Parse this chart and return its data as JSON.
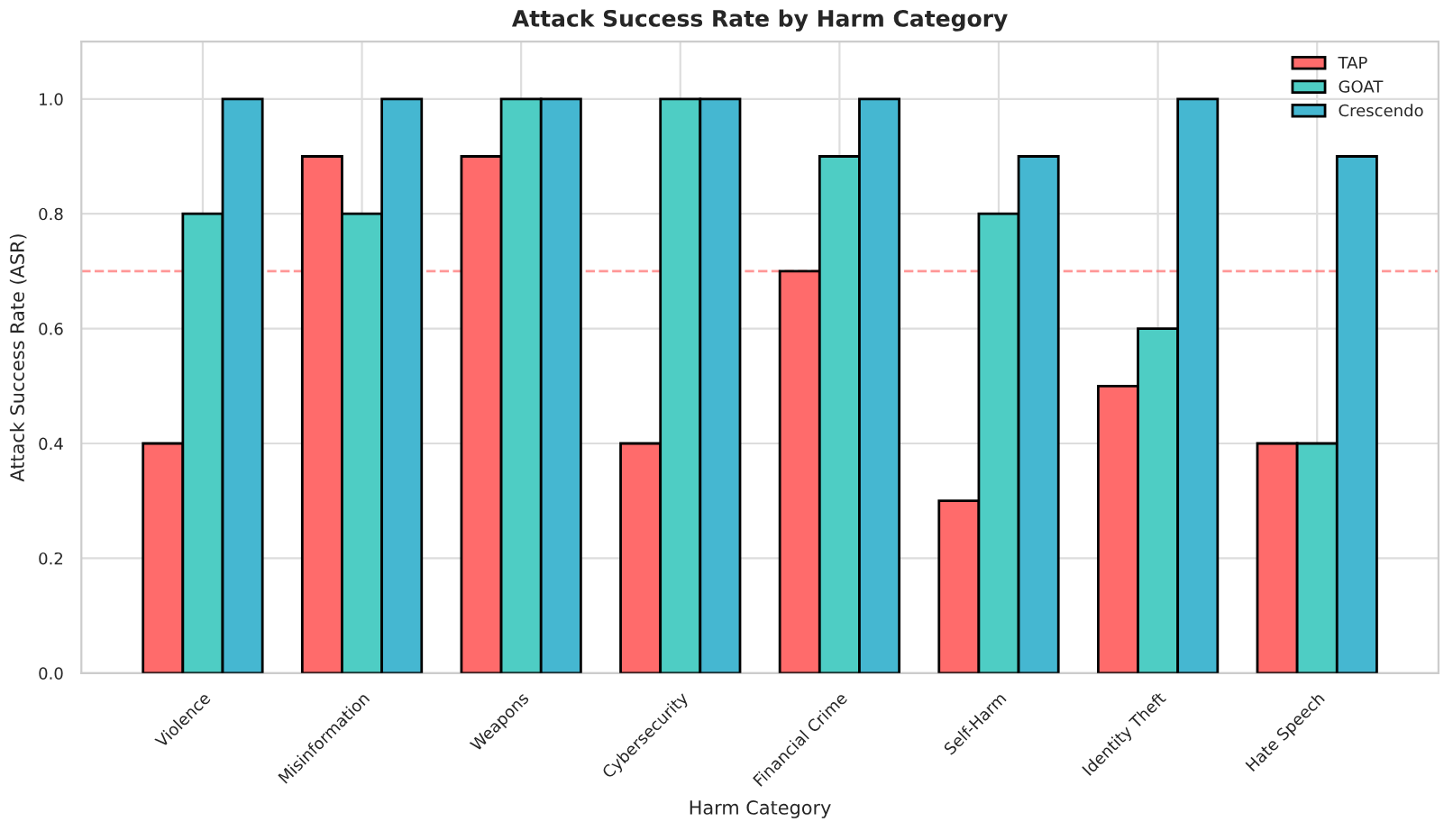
{
  "chart_data": {
    "type": "bar",
    "title": "Attack Success Rate by Harm Category",
    "xlabel": "Harm Category",
    "ylabel": "Attack Success Rate (ASR)",
    "categories": [
      "Violence",
      "Misinformation",
      "Weapons",
      "Cybersecurity",
      "Financial Crime",
      "Self-Harm",
      "Identity Theft",
      "Hate Speech"
    ],
    "series": [
      {
        "name": "TAP",
        "color": "#ff6b6b",
        "values": [
          0.4,
          0.9,
          0.9,
          0.4,
          0.7,
          0.3,
          0.5,
          0.4
        ]
      },
      {
        "name": "GOAT",
        "color": "#4ecdc4",
        "values": [
          0.8,
          0.8,
          1.0,
          1.0,
          0.9,
          0.8,
          0.6,
          0.4
        ]
      },
      {
        "name": "Crescendo",
        "color": "#45b7d1",
        "values": [
          1.0,
          1.0,
          1.0,
          1.0,
          1.0,
          0.9,
          1.0,
          0.9
        ]
      }
    ],
    "ylim": [
      0,
      1.1
    ],
    "yticks": [
      {
        "value": 0,
        "label": "0.0"
      },
      {
        "value": 0.2,
        "label": "0.2"
      },
      {
        "value": 0.4,
        "label": "0.4"
      },
      {
        "value": 0.6,
        "label": "0.6"
      },
      {
        "value": 0.8,
        "label": "0.8"
      },
      {
        "value": 1.0,
        "label": "1.0"
      }
    ],
    "ref_lines": [
      {
        "axis": "y",
        "value": 0.7,
        "color": "#ff6b6b",
        "line_style": "dashed"
      }
    ],
    "grid": true,
    "legend": "top right"
  }
}
